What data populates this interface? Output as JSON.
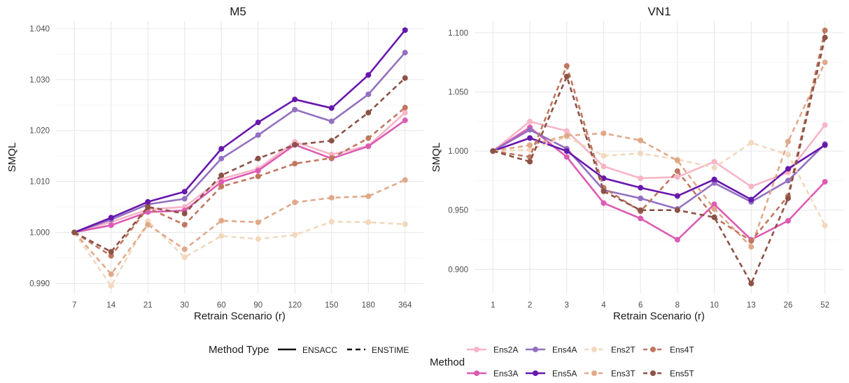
{
  "chart_data": [
    {
      "type": "line",
      "title": "M5",
      "xlabel": "Retrain Scenario (r)",
      "ylabel": "SMQL",
      "categories": [
        "7",
        "14",
        "21",
        "30",
        "60",
        "90",
        "120",
        "150",
        "180",
        "364"
      ],
      "yticks": [
        "0.990",
        "1.000",
        "1.010",
        "1.020",
        "1.030",
        "1.040"
      ],
      "ylim": [
        0.988,
        1.0415
      ],
      "grid": true,
      "series": [
        {
          "name": "Ens2A",
          "values": [
            1.0,
            1.002,
            1.0045,
            1.005,
            1.0105,
            1.0125,
            1.0178,
            1.0153,
            1.017,
            1.0235
          ]
        },
        {
          "name": "Ens3A",
          "values": [
            1.0,
            1.0014,
            1.004,
            1.0043,
            1.0099,
            1.0121,
            1.0172,
            1.0145,
            1.0169,
            1.022
          ]
        },
        {
          "name": "Ens4A",
          "values": [
            1.0,
            1.0025,
            1.0055,
            1.0066,
            1.0145,
            1.0191,
            1.0241,
            1.0218,
            1.0271,
            1.0353
          ]
        },
        {
          "name": "Ens5A",
          "values": [
            1.0,
            1.0029,
            1.006,
            1.008,
            1.0164,
            1.0216,
            1.0261,
            1.0244,
            1.0309,
            1.0397
          ]
        },
        {
          "name": "Ens2T",
          "values": [
            1.0,
            0.9895,
            1.0022,
            0.9951,
            0.9993,
            0.9987,
            0.9995,
            1.0021,
            1.002,
            1.0016
          ]
        },
        {
          "name": "Ens3T",
          "values": [
            1.0,
            0.9918,
            1.0015,
            0.9967,
            1.0023,
            1.002,
            1.0059,
            1.0068,
            1.0071,
            1.0103
          ]
        },
        {
          "name": "Ens4T",
          "values": [
            1.0,
            0.9954,
            1.0048,
            1.0015,
            1.009,
            1.011,
            1.0135,
            1.0146,
            1.0185,
            1.0245
          ]
        },
        {
          "name": "Ens5T",
          "values": [
            1.0,
            0.9962,
            1.005,
            1.0037,
            1.0112,
            1.0145,
            1.0172,
            1.018,
            1.0235,
            1.0303
          ]
        }
      ]
    },
    {
      "type": "line",
      "title": "VN1",
      "xlabel": "Retrain Scenario (r)",
      "ylabel": "SMQL",
      "categories": [
        "1",
        "2",
        "3",
        "4",
        "6",
        "8",
        "10",
        "13",
        "26",
        "52"
      ],
      "yticks": [
        "0.900",
        "0.950",
        "1.000",
        "1.050",
        "1.100"
      ],
      "ylim": [
        0.8795,
        1.11
      ],
      "grid": true,
      "series": [
        {
          "name": "Ens2A",
          "values": [
            1.0,
            1.025,
            1.017,
            0.987,
            0.977,
            0.978,
            0.991,
            0.97,
            0.982,
            1.022
          ]
        },
        {
          "name": "Ens3A",
          "values": [
            1.0,
            1.02,
            0.995,
            0.956,
            0.943,
            0.925,
            0.955,
            0.925,
            0.941,
            0.974
          ]
        },
        {
          "name": "Ens4A",
          "values": [
            1.0,
            1.018,
            1.002,
            0.967,
            0.96,
            0.951,
            0.973,
            0.957,
            0.975,
            1.006
          ]
        },
        {
          "name": "Ens5A",
          "values": [
            1.0,
            1.011,
            1.0,
            0.977,
            0.969,
            0.962,
            0.976,
            0.959,
            0.985,
            1.005
          ]
        },
        {
          "name": "Ens2T",
          "values": [
            1.0,
            1.001,
            1.012,
            0.996,
            0.998,
            0.993,
            0.986,
            1.007,
            0.997,
            0.937
          ]
        },
        {
          "name": "Ens3T",
          "values": [
            1.0,
            1.005,
            1.013,
            1.015,
            1.009,
            0.992,
            0.951,
            0.919,
            1.008,
            1.075
          ]
        },
        {
          "name": "Ens4T",
          "values": [
            1.0,
            0.995,
            1.072,
            0.969,
            0.949,
            0.983,
            0.944,
            0.924,
            0.962,
            1.102
          ]
        },
        {
          "name": "Ens5T",
          "values": [
            1.0,
            0.991,
            1.063,
            0.966,
            0.95,
            0.95,
            0.944,
            0.888,
            0.96,
            1.096
          ]
        }
      ]
    }
  ],
  "styles": {
    "Ens2A": {
      "color": "#f7b5c6",
      "dash": "solid"
    },
    "Ens3A": {
      "color": "#dd5bb3",
      "dash": "solid"
    },
    "Ens4A": {
      "color": "#9370c1",
      "dash": "solid"
    },
    "Ens5A": {
      "color": "#6817ad",
      "dash": "solid"
    },
    "Ens2T": {
      "color": "#f2d8bd",
      "dash": "dashed"
    },
    "Ens3T": {
      "color": "#e0a98a",
      "dash": "dashed"
    },
    "Ens4T": {
      "color": "#c07760",
      "dash": "dashed"
    },
    "Ens5T": {
      "color": "#8c5246",
      "dash": "dashed"
    }
  },
  "legend": {
    "method_type_title": "Method Type",
    "method_type_items": [
      {
        "label": "ENSACC",
        "dash": "solid"
      },
      {
        "label": "ENSTIME",
        "dash": "dashed"
      }
    ],
    "method_title": "Method",
    "method_items": [
      "Ens2A",
      "Ens4A",
      "Ens2T",
      "Ens4T",
      "Ens3A",
      "Ens5A",
      "Ens3T",
      "Ens5T"
    ]
  }
}
